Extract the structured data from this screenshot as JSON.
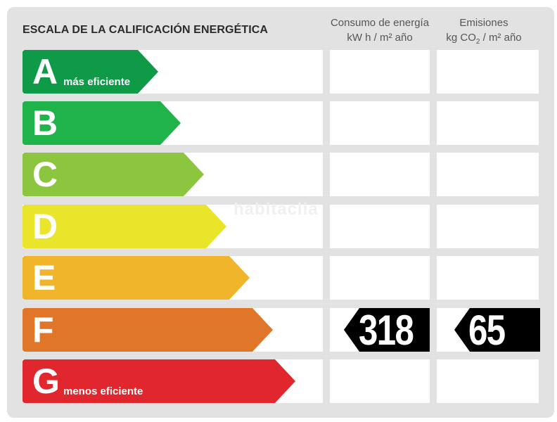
{
  "header": {
    "title": "ESCALA DE LA CALIFICACIÓN ENERGÉTICA",
    "col_consumo_line1": "Consumo de energía",
    "col_consumo_line2": "kW h  / m² año",
    "col_emisiones_line1": "Emisiones",
    "col_emisiones_line2_pre": "kg CO",
    "col_emisiones_line2_sub": "2",
    "col_emisiones_line2_post": "  / m² año"
  },
  "watermark": "habitaclia",
  "ratings": [
    {
      "letter": "A",
      "label": "más eficiente",
      "color": "#0f9a48"
    },
    {
      "letter": "B",
      "label": "",
      "color": "#1fb34a"
    },
    {
      "letter": "C",
      "label": "",
      "color": "#8cc63f"
    },
    {
      "letter": "D",
      "label": "",
      "color": "#e9e52b"
    },
    {
      "letter": "E",
      "label": "",
      "color": "#f0b52b"
    },
    {
      "letter": "F",
      "label": "",
      "color": "#e0762a"
    },
    {
      "letter": "G",
      "label": "menos eficiente",
      "color": "#e0272d"
    }
  ],
  "selected": {
    "letter": "F",
    "consumo": "318",
    "emisiones": "65"
  }
}
